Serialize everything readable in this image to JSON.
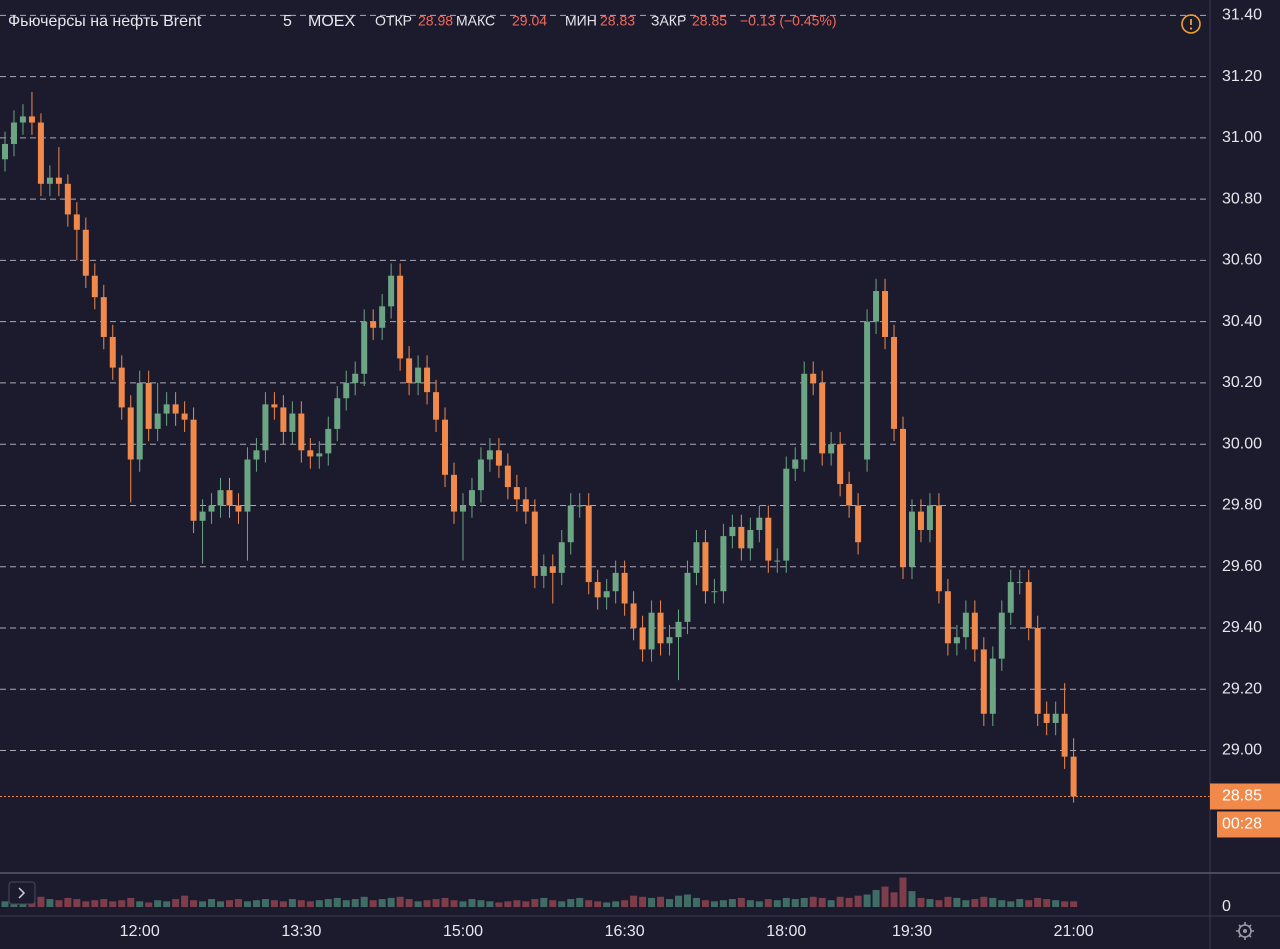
{
  "header": {
    "title": "Фьючерсы на нефть Brent",
    "interval": "5",
    "exchange": "MOEX",
    "labels": [
      "ОТКР",
      "МАКС",
      "МИН",
      "ЗАКР"
    ],
    "change": "−0.13 (−0.45%)",
    "countdown": "00:28"
  },
  "chart_data": {
    "type": "candlestick",
    "categories": [
      null,
      null,
      null,
      null,
      null,
      null,
      null,
      null,
      null,
      null,
      null,
      null,
      null,
      null,
      null,
      "12:00",
      null,
      null,
      null,
      null,
      null,
      null,
      null,
      null,
      null,
      null,
      null,
      null,
      null,
      null,
      null,
      null,
      null,
      "13:30",
      null,
      null,
      null,
      null,
      null,
      null,
      null,
      null,
      null,
      null,
      null,
      null,
      null,
      null,
      null,
      null,
      null,
      "15:00",
      null,
      null,
      null,
      null,
      null,
      null,
      null,
      null,
      null,
      null,
      null,
      null,
      null,
      null,
      null,
      null,
      null,
      "16:30",
      null,
      null,
      null,
      null,
      null,
      null,
      null,
      null,
      null,
      null,
      null,
      null,
      null,
      null,
      null,
      null,
      null,
      "18:00",
      null,
      null,
      null,
      null,
      null,
      null,
      null,
      null,
      null,
      null,
      null,
      null,
      null,
      "19:30",
      null,
      null,
      null,
      null,
      null,
      null,
      null,
      null,
      null,
      null,
      null,
      null,
      null,
      null,
      null,
      null,
      null,
      "21:00"
    ],
    "open": [
      30.93,
      30.98,
      31.05,
      31.07,
      31.05,
      30.85,
      30.87,
      30.85,
      30.75,
      30.7,
      30.55,
      30.48,
      30.35,
      30.25,
      30.12,
      29.95,
      30.2,
      30.05,
      30.1,
      30.13,
      30.1,
      30.08,
      29.75,
      29.78,
      29.8,
      29.85,
      29.8,
      29.78,
      29.95,
      29.98,
      30.13,
      30.12,
      30.04,
      30.1,
      29.98,
      29.96,
      29.97,
      30.05,
      30.15,
      30.2,
      30.23,
      30.4,
      30.38,
      30.45,
      30.55,
      30.28,
      30.2,
      30.25,
      30.17,
      30.08,
      29.9,
      29.78,
      29.8,
      29.85,
      29.95,
      29.98,
      29.93,
      29.86,
      29.82,
      29.78,
      29.57,
      29.6,
      29.58,
      29.68,
      29.8,
      29.8,
      29.55,
      29.5,
      29.52,
      29.58,
      29.48,
      29.4,
      29.33,
      29.45,
      29.35,
      29.37,
      29.42,
      29.58,
      29.68,
      29.52,
      29.52,
      29.7,
      29.73,
      29.66,
      29.72,
      29.76,
      29.62,
      29.62,
      29.92,
      29.95,
      30.23,
      30.2,
      29.97,
      30.0,
      29.87,
      29.8,
      29.95,
      30.4,
      30.5,
      30.35,
      30.05,
      29.6,
      29.78,
      29.72,
      29.8,
      29.52,
      29.35,
      29.37,
      29.45,
      29.33,
      29.12,
      29.3,
      29.45,
      29.55,
      29.55,
      29.4,
      29.12,
      29.09,
      29.12,
      28.98
    ],
    "high": [
      31.02,
      31.09,
      31.11,
      31.15,
      31.08,
      30.91,
      30.97,
      30.88,
      30.79,
      30.74,
      30.59,
      30.52,
      30.39,
      30.29,
      30.16,
      30.24,
      30.24,
      30.2,
      30.17,
      30.17,
      30.14,
      30.12,
      29.82,
      29.84,
      29.89,
      29.89,
      29.84,
      29.99,
      30.02,
      30.17,
      30.17,
      30.16,
      30.14,
      30.14,
      30.02,
      30.01,
      30.09,
      30.19,
      30.24,
      30.27,
      30.44,
      30.44,
      30.49,
      30.59,
      30.59,
      30.32,
      30.29,
      30.29,
      30.21,
      30.12,
      29.94,
      29.84,
      29.89,
      29.99,
      30.02,
      30.02,
      29.97,
      29.9,
      29.86,
      29.82,
      29.64,
      29.64,
      29.72,
      29.84,
      29.84,
      29.84,
      29.59,
      29.56,
      29.62,
      29.62,
      29.52,
      29.44,
      29.49,
      29.49,
      29.41,
      29.46,
      29.62,
      29.72,
      29.72,
      29.56,
      29.74,
      29.77,
      29.77,
      29.76,
      29.8,
      29.8,
      29.66,
      29.96,
      29.99,
      30.27,
      30.27,
      30.24,
      30.04,
      30.04,
      29.91,
      29.84,
      30.44,
      30.54,
      30.54,
      30.39,
      30.09,
      29.82,
      29.82,
      29.84,
      29.84,
      29.56,
      29.41,
      29.49,
      29.49,
      29.37,
      29.34,
      29.49,
      29.59,
      29.59,
      29.59,
      29.44,
      29.16,
      29.16,
      29.22,
      29.04
    ],
    "low": [
      30.89,
      30.94,
      31.01,
      31.01,
      30.81,
      30.81,
      30.81,
      30.71,
      30.6,
      30.51,
      30.44,
      30.31,
      30.21,
      30.08,
      29.81,
      29.91,
      30.01,
      30.01,
      30.06,
      30.06,
      30.04,
      29.71,
      29.61,
      29.74,
      29.76,
      29.76,
      29.74,
      29.62,
      29.91,
      29.94,
      30.08,
      30.0,
      30.0,
      29.94,
      29.92,
      29.92,
      29.93,
      30.01,
      30.11,
      30.16,
      30.19,
      30.34,
      30.34,
      30.41,
      30.24,
      30.16,
      30.16,
      30.13,
      30.04,
      29.86,
      29.74,
      29.62,
      29.76,
      29.81,
      29.91,
      29.89,
      29.82,
      29.78,
      29.74,
      29.53,
      29.53,
      29.48,
      29.54,
      29.64,
      29.76,
      29.51,
      29.46,
      29.46,
      29.48,
      29.44,
      29.36,
      29.29,
      29.29,
      29.31,
      29.31,
      29.23,
      29.38,
      29.54,
      29.48,
      29.48,
      29.48,
      29.66,
      29.62,
      29.62,
      29.68,
      29.58,
      29.58,
      29.58,
      29.88,
      29.91,
      30.16,
      29.93,
      29.93,
      29.83,
      29.76,
      29.64,
      29.91,
      30.36,
      30.31,
      30.01,
      29.56,
      29.56,
      29.68,
      29.68,
      29.48,
      29.31,
      29.31,
      29.33,
      29.29,
      29.08,
      29.08,
      29.26,
      29.41,
      29.51,
      29.36,
      29.08,
      29.05,
      29.05,
      28.94,
      28.83
    ],
    "close": [
      30.98,
      31.05,
      31.07,
      31.05,
      30.85,
      30.87,
      30.85,
      30.75,
      30.7,
      30.55,
      30.48,
      30.35,
      30.25,
      30.12,
      29.95,
      30.2,
      30.05,
      30.1,
      30.13,
      30.1,
      30.08,
      29.75,
      29.78,
      29.8,
      29.85,
      29.8,
      29.78,
      29.95,
      29.98,
      30.13,
      30.12,
      30.04,
      30.1,
      29.98,
      29.96,
      29.97,
      30.05,
      30.15,
      30.2,
      30.23,
      30.4,
      30.38,
      30.45,
      30.55,
      30.28,
      30.2,
      30.25,
      30.17,
      30.08,
      29.9,
      29.78,
      29.8,
      29.85,
      29.95,
      29.98,
      29.93,
      29.86,
      29.82,
      29.78,
      29.57,
      29.6,
      29.58,
      29.68,
      29.8,
      29.8,
      29.55,
      29.5,
      29.52,
      29.58,
      29.48,
      29.4,
      29.33,
      29.45,
      29.35,
      29.37,
      29.42,
      29.58,
      29.68,
      29.52,
      29.52,
      29.7,
      29.73,
      29.66,
      29.72,
      29.76,
      29.62,
      29.62,
      29.92,
      29.95,
      30.23,
      30.2,
      29.97,
      30.0,
      29.87,
      29.8,
      29.68,
      30.4,
      30.5,
      30.35,
      30.05,
      29.6,
      29.78,
      29.72,
      29.8,
      29.52,
      29.35,
      29.37,
      29.45,
      29.33,
      29.12,
      29.3,
      29.45,
      29.55,
      29.55,
      29.4,
      29.12,
      29.09,
      29.12,
      28.98,
      28.85
    ],
    "volume": [
      10,
      14,
      12,
      16,
      18,
      14,
      12,
      16,
      14,
      10,
      12,
      14,
      10,
      12,
      16,
      10,
      8,
      12,
      10,
      14,
      20,
      12,
      10,
      14,
      10,
      12,
      14,
      10,
      12,
      14,
      12,
      10,
      14,
      12,
      10,
      12,
      14,
      16,
      12,
      14,
      18,
      12,
      14,
      16,
      18,
      14,
      10,
      12,
      14,
      16,
      12,
      10,
      14,
      12,
      10,
      8,
      10,
      12,
      10,
      14,
      16,
      12,
      10,
      14,
      16,
      12,
      10,
      8,
      10,
      12,
      20,
      18,
      16,
      18,
      14,
      20,
      22,
      16,
      12,
      10,
      12,
      14,
      16,
      12,
      10,
      14,
      12,
      16,
      14,
      16,
      18,
      16,
      12,
      18,
      16,
      20,
      22,
      30,
      36,
      26,
      52,
      28,
      16,
      14,
      12,
      18,
      16,
      12,
      14,
      18,
      16,
      12,
      10,
      14,
      12,
      16,
      14,
      12,
      10,
      10
    ],
    "up_color": "#6ba583",
    "down_color": "#f0894a",
    "up_volume_color": "#3f6d66",
    "down_volume_color": "#7d3d4b",
    "ylim": [
      28.61,
      31.45
    ],
    "yticks": [
      {
        "value": 29,
        "label": "29.00"
      },
      {
        "value": 29.2,
        "label": "29.20"
      },
      {
        "value": 29.4,
        "label": "29.40"
      },
      {
        "value": 29.6,
        "label": "29.60"
      },
      {
        "value": 29.8,
        "label": "29.80"
      },
      {
        "value": 30,
        "label": "30.00"
      },
      {
        "value": 30.2,
        "label": "30.20"
      },
      {
        "value": 30.4,
        "label": "30.40"
      },
      {
        "value": 30.6,
        "label": "30.60"
      },
      {
        "value": 30.8,
        "label": "30.80"
      },
      {
        "value": 31,
        "label": "31.00"
      },
      {
        "value": 31.2,
        "label": "31.20"
      },
      {
        "value": 31.4,
        "label": "31.40"
      }
    ],
    "volume_lim": [
      0,
      60
    ],
    "volume_ticks": [
      0
    ],
    "grid": true
  }
}
